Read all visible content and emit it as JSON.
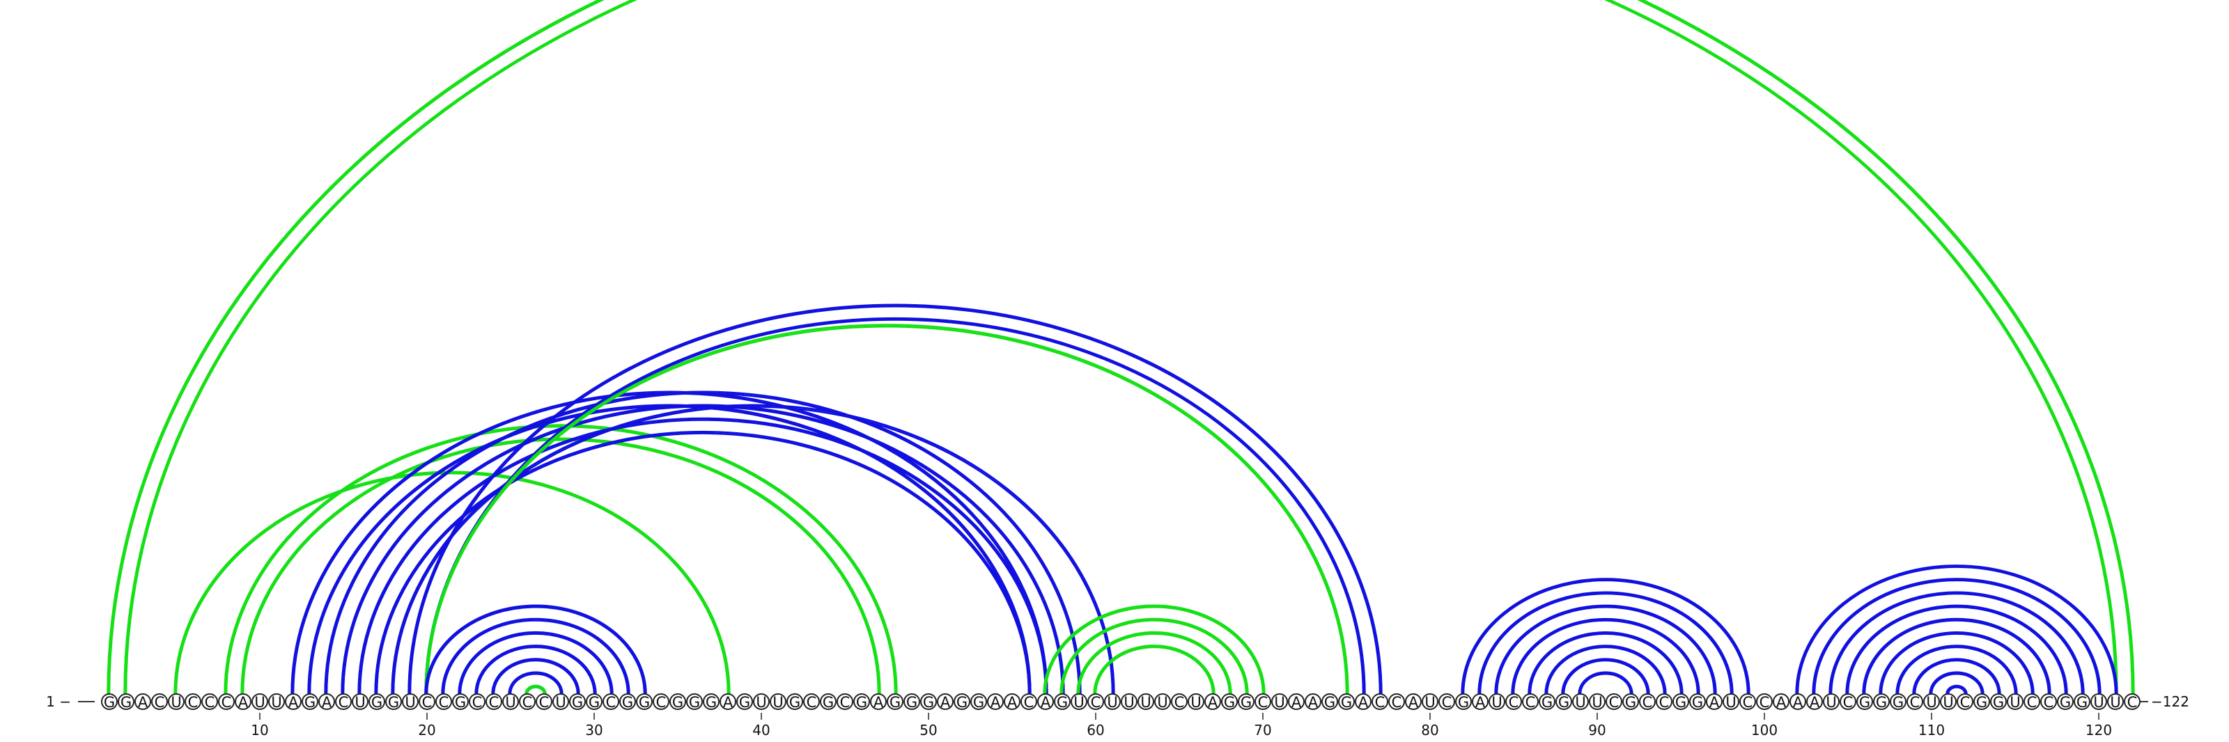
{
  "sequence": "GGACUCCCAUUAGACUGGUCCGCCUCCUGGCGGCGGGAGUUGCGCGAGGGAGGAACAGUCUUUUCUAGGCUAAGGACCAUCGAUCCGGUUCGCCGGAUCCAAAUCGGGCUUCGGUCCGGUUC",
  "labels": {
    "start": "1 −",
    "end": "−122"
  },
  "ticks": [
    10,
    20,
    30,
    40,
    50,
    60,
    70,
    80,
    90,
    100,
    110,
    120
  ],
  "colors": {
    "blue": "#1010e0",
    "green": "#14e014"
  },
  "arc_groups": [
    {
      "color": "green",
      "start": 1,
      "end": 122,
      "pairs": 1
    },
    {
      "color": "green",
      "start": 2,
      "end": 121,
      "pairs": 1
    },
    {
      "color": "green",
      "start": 5,
      "end": 38,
      "pairs": 1
    },
    {
      "color": "green",
      "start": 8,
      "end": 48,
      "pairs": 2
    },
    {
      "color": "blue",
      "start": 12,
      "end": 57,
      "pairs": 2
    },
    {
      "color": "blue",
      "start": 14,
      "end": 59,
      "pairs": 4
    },
    {
      "color": "blue",
      "start": 18,
      "end": 61,
      "pairs": 1
    },
    {
      "color": "blue",
      "start": 19,
      "end": 77,
      "pairs": 2
    },
    {
      "color": "green",
      "start": 20,
      "end": 75,
      "pairs": 1
    },
    {
      "color": "blue",
      "start": 20,
      "end": 33,
      "pairs": 7
    },
    {
      "color": "green",
      "start": 26,
      "end": 27,
      "pairs": 1
    },
    {
      "color": "green",
      "start": 57,
      "end": 70,
      "pairs": 1
    },
    {
      "color": "green",
      "start": 58,
      "end": 69,
      "pairs": 1
    },
    {
      "color": "green",
      "start": 59,
      "end": 68,
      "pairs": 1
    },
    {
      "color": "green",
      "start": 60,
      "end": 67,
      "pairs": 1
    },
    {
      "color": "blue",
      "start": 82,
      "end": 99,
      "pairs": 8
    },
    {
      "color": "blue",
      "start": 102,
      "end": 121,
      "pairs": 3
    },
    {
      "color": "blue",
      "start": 105,
      "end": 118,
      "pairs": 7
    }
  ]
}
